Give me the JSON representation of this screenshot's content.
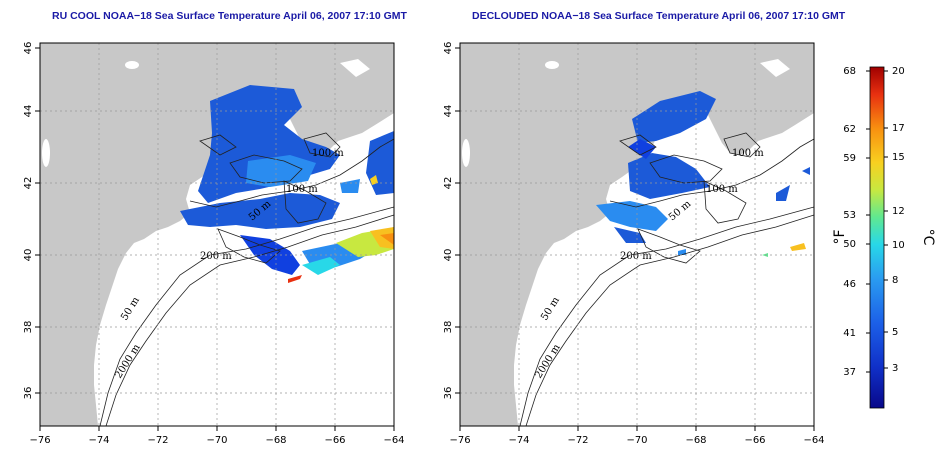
{
  "titles": {
    "left": "RU COOL NOAA−18 Sea Surface Temperature April 06, 2007 17:10 GMT",
    "right": "DECLOUDED NOAA−18 Sea Surface Temperature April 06, 2007 17:10 GMT"
  },
  "axes": {
    "x_ticks": [
      "−76",
      "−74",
      "−72",
      "−70",
      "−68",
      "−66",
      "−64"
    ],
    "y_ticks": [
      "46",
      "44",
      "42",
      "40",
      "38",
      "36"
    ]
  },
  "contour_labels": {
    "left": [
      "100 m",
      "100 m",
      "50 m",
      "200 m",
      "50 m",
      "2000 m"
    ],
    "right": [
      "100 m",
      "100 m",
      "50 m",
      "200 m",
      "50 m",
      "2000 m"
    ]
  },
  "colorbar": {
    "fahrenheit_ticks": [
      "68",
      "62",
      "59",
      "53",
      "50",
      "46",
      "41",
      "37"
    ],
    "celsius_ticks": [
      "20",
      "17",
      "15",
      "12",
      "10",
      "8",
      "5",
      "3"
    ],
    "unit_f": "°F",
    "unit_c": "°C"
  },
  "colors": {
    "land": "#c8c8c8",
    "title": "#1a1aa6",
    "colormap": [
      "#08088a",
      "#1040e0",
      "#2a8cf0",
      "#28d8e8",
      "#60e890",
      "#c8e840",
      "#f8d020",
      "#f89010",
      "#e83010",
      "#a00000"
    ]
  }
}
